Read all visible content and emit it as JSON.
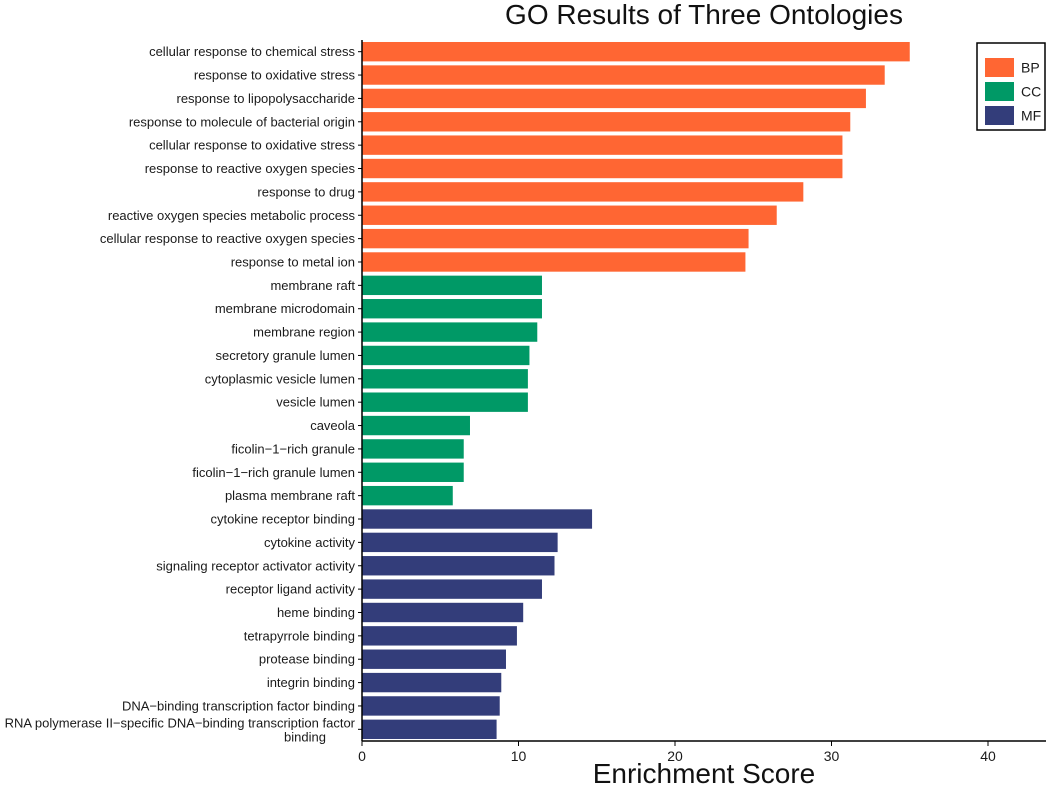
{
  "chart_data": {
    "type": "bar",
    "orientation": "horizontal",
    "title": "GO Results of Three Ontologies",
    "xlabel": "Enrichment Score",
    "ylabel": "",
    "xlim": [
      0,
      43.5
    ],
    "xticks": [
      0,
      10,
      20,
      30,
      40
    ],
    "grid": false,
    "legend_position": "top-right",
    "colors": {
      "BP": "#ff6633",
      "CC": "#009966",
      "MF": "#333d7a"
    },
    "series": [
      {
        "name": "BP",
        "color": "#ff6633"
      },
      {
        "name": "CC",
        "color": "#009966"
      },
      {
        "name": "MF",
        "color": "#333d7a"
      }
    ],
    "categories": [
      {
        "label": "cellular response to chemical stress",
        "value": 35.0,
        "group": "BP"
      },
      {
        "label": "response to oxidative stress",
        "value": 33.4,
        "group": "BP"
      },
      {
        "label": "response to lipopolysaccharide",
        "value": 32.2,
        "group": "BP"
      },
      {
        "label": "response to molecule of bacterial origin",
        "value": 31.2,
        "group": "BP"
      },
      {
        "label": "cellular response to oxidative stress",
        "value": 30.7,
        "group": "BP"
      },
      {
        "label": "response to reactive oxygen species",
        "value": 30.7,
        "group": "BP"
      },
      {
        "label": "response to drug",
        "value": 28.2,
        "group": "BP"
      },
      {
        "label": "reactive oxygen species metabolic process",
        "value": 26.5,
        "group": "BP"
      },
      {
        "label": "cellular response to reactive oxygen species",
        "value": 24.7,
        "group": "BP"
      },
      {
        "label": "response to metal ion",
        "value": 24.5,
        "group": "BP"
      },
      {
        "label": "membrane raft",
        "value": 11.5,
        "group": "CC"
      },
      {
        "label": "membrane microdomain",
        "value": 11.5,
        "group": "CC"
      },
      {
        "label": "membrane region",
        "value": 11.2,
        "group": "CC"
      },
      {
        "label": "secretory granule lumen",
        "value": 10.7,
        "group": "CC"
      },
      {
        "label": "cytoplasmic vesicle lumen",
        "value": 10.6,
        "group": "CC"
      },
      {
        "label": "vesicle lumen",
        "value": 10.6,
        "group": "CC"
      },
      {
        "label": "caveola",
        "value": 6.9,
        "group": "CC"
      },
      {
        "label": "ficolin−1−rich granule",
        "value": 6.5,
        "group": "CC"
      },
      {
        "label": "ficolin−1−rich granule lumen",
        "value": 6.5,
        "group": "CC"
      },
      {
        "label": "plasma membrane raft",
        "value": 5.8,
        "group": "CC"
      },
      {
        "label": "cytokine receptor binding",
        "value": 14.7,
        "group": "MF"
      },
      {
        "label": "cytokine activity",
        "value": 12.5,
        "group": "MF"
      },
      {
        "label": "signaling receptor activator activity",
        "value": 12.3,
        "group": "MF"
      },
      {
        "label": "receptor ligand activity",
        "value": 11.5,
        "group": "MF"
      },
      {
        "label": "heme binding",
        "value": 10.3,
        "group": "MF"
      },
      {
        "label": "tetrapyrrole binding",
        "value": 9.9,
        "group": "MF"
      },
      {
        "label": "protease binding",
        "value": 9.2,
        "group": "MF"
      },
      {
        "label": "integrin binding",
        "value": 8.9,
        "group": "MF"
      },
      {
        "label": "DNA−binding transcription factor binding",
        "value": 8.8,
        "group": "MF"
      },
      {
        "label": "RNA polymerase II−specific DNA−binding transcription factor binding",
        "value": 8.6,
        "group": "MF"
      }
    ]
  }
}
